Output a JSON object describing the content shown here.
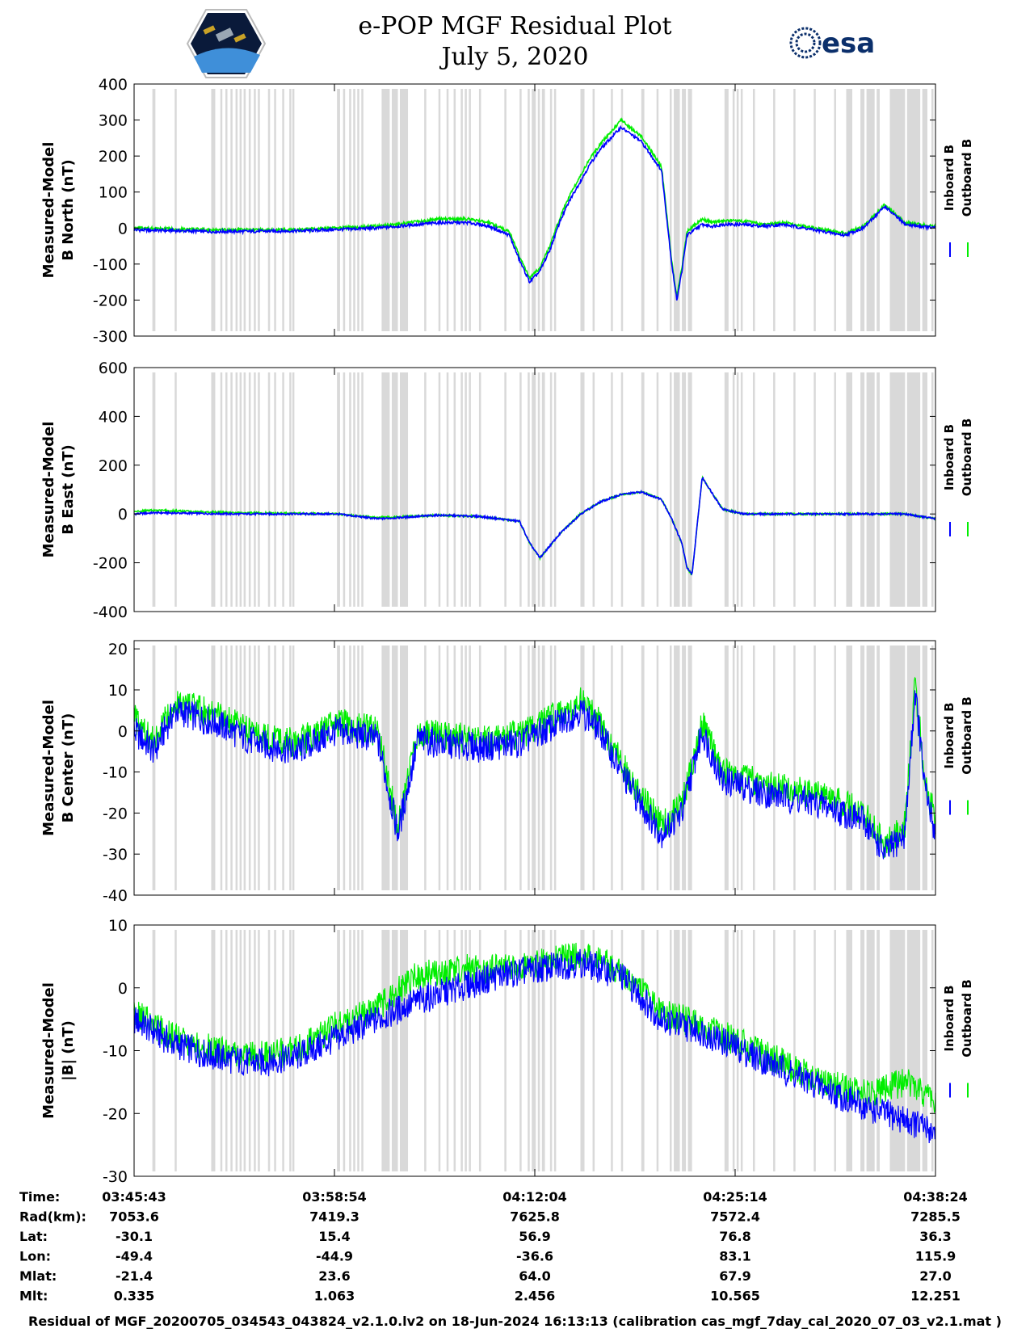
{
  "page": {
    "title_line1": "e-POP MGF Residual Plot",
    "title_line2": "July 5, 2020",
    "logo_left_icon": "cassiope-satellite-logo",
    "logo_right_text": "esa",
    "footer": "Residual of MGF_20200705_034543_043824_v2.1.0.lv2 on 18-Jun-2024 16:13:13 (calibration cas_mgf_7day_cal_2020_07_03_v2.1.mat )"
  },
  "colors": {
    "inboard": "#0000ff",
    "outboard": "#00ee00",
    "gap_shading": "#d9d9d9"
  },
  "chart_data": [
    {
      "type": "line",
      "ylabel": [
        "Measured-Model",
        "B North (nT)"
      ],
      "ylim": [
        -300,
        400
      ],
      "yticks": [
        -300,
        -200,
        -100,
        0,
        100,
        200,
        300,
        400
      ],
      "legend": [
        "Inboard B",
        "Outboard B"
      ],
      "legend_placement": "right",
      "x": [
        0,
        80,
        160,
        240,
        300,
        330,
        350,
        370,
        380,
        390,
        400,
        410,
        420,
        430,
        440,
        450,
        460,
        480,
        500,
        520,
        530,
        535,
        540,
        545,
        555,
        560,
        570,
        580,
        600,
        620,
        640,
        660,
        680,
        700,
        719,
        740,
        760,
        790
      ],
      "series": [
        {
          "name": "Inboard B",
          "values": [
            -5,
            -10,
            -8,
            0,
            15,
            15,
            5,
            -20,
            -90,
            -150,
            -120,
            -60,
            20,
            80,
            130,
            180,
            220,
            280,
            240,
            160,
            -100,
            -200,
            -120,
            -20,
            0,
            10,
            5,
            10,
            10,
            5,
            10,
            0,
            -10,
            -20,
            0,
            60,
            10,
            0
          ]
        },
        {
          "name": "Outboard B",
          "values": [
            0,
            -5,
            -5,
            5,
            25,
            25,
            15,
            -10,
            -80,
            -140,
            -110,
            -50,
            30,
            95,
            145,
            195,
            235,
            300,
            255,
            170,
            -90,
            -190,
            -110,
            -10,
            15,
            25,
            15,
            20,
            20,
            10,
            15,
            5,
            -5,
            -15,
            5,
            65,
            15,
            5
          ]
        }
      ]
    },
    {
      "type": "line",
      "ylabel": [
        "Measured-Model",
        "B East (nT)"
      ],
      "ylim": [
        -400,
        600
      ],
      "yticks": [
        -400,
        -200,
        0,
        200,
        400,
        600
      ],
      "legend": [
        "Inboard B",
        "Outboard B"
      ],
      "legend_placement": "right",
      "x": [
        0,
        20,
        100,
        200,
        240,
        300,
        340,
        380,
        390,
        400,
        420,
        440,
        460,
        480,
        500,
        520,
        530,
        540,
        545,
        550,
        560,
        580,
        600,
        650,
        700,
        760,
        790
      ],
      "series": [
        {
          "name": "Inboard B",
          "values": [
            0,
            5,
            0,
            0,
            -20,
            -5,
            -10,
            -30,
            -120,
            -180,
            -80,
            0,
            50,
            80,
            90,
            60,
            -20,
            -120,
            -220,
            -250,
            150,
            20,
            0,
            0,
            0,
            0,
            -20
          ]
        },
        {
          "name": "Outboard B",
          "values": [
            10,
            15,
            5,
            0,
            -15,
            -5,
            -10,
            -30,
            -120,
            -180,
            -80,
            0,
            50,
            80,
            90,
            60,
            -20,
            -120,
            -220,
            -250,
            150,
            20,
            0,
            0,
            0,
            0,
            -20
          ]
        }
      ]
    },
    {
      "type": "line",
      "ylabel": [
        "Measured-Model",
        "B Center (nT)"
      ],
      "ylim": [
        -40,
        22
      ],
      "yticks": [
        -40,
        -30,
        -20,
        -10,
        0,
        10,
        20
      ],
      "legend": [
        "Inboard B",
        "Outboard B"
      ],
      "legend_placement": "right",
      "x": [
        0,
        20,
        40,
        80,
        120,
        160,
        200,
        240,
        260,
        280,
        300,
        340,
        380,
        420,
        440,
        460,
        480,
        500,
        520,
        540,
        560,
        580,
        620,
        680,
        720,
        740,
        760,
        770,
        780,
        790
      ],
      "series": [
        {
          "name": "Inboard B",
          "values": [
            0,
            -5,
            5,
            2,
            -3,
            -5,
            0,
            -2,
            -25,
            -2,
            -3,
            -4,
            -3,
            2,
            5,
            0,
            -10,
            -18,
            -25,
            -20,
            0,
            -12,
            -15,
            -18,
            -22,
            -30,
            -25,
            10,
            -15,
            -25
          ]
        },
        {
          "name": "Outboard B",
          "values": [
            3,
            -3,
            7,
            4,
            -1,
            -3,
            2,
            0,
            -23,
            0,
            -1,
            -2,
            -1,
            4,
            7,
            2,
            -8,
            -16,
            -23,
            -18,
            2,
            -10,
            -13,
            -16,
            -20,
            -28,
            -23,
            12,
            -13,
            -22
          ]
        }
      ]
    },
    {
      "type": "line",
      "ylabel": [
        "Measured-Model",
        "|B| (nT)"
      ],
      "ylim": [
        -30,
        10
      ],
      "yticks": [
        -30,
        -20,
        -10,
        0,
        10
      ],
      "legend": [
        "Inboard B",
        "Outboard B"
      ],
      "legend_placement": "right",
      "x": [
        0,
        40,
        80,
        120,
        160,
        200,
        240,
        280,
        320,
        360,
        400,
        440,
        480,
        520,
        560,
        600,
        640,
        680,
        720,
        760,
        790
      ],
      "series": [
        {
          "name": "Inboard B",
          "values": [
            -5,
            -9,
            -11,
            -12,
            -11,
            -8,
            -5,
            -2,
            0,
            2,
            3,
            4,
            2,
            -5,
            -7,
            -10,
            -13,
            -16,
            -19,
            -21,
            -23
          ]
        },
        {
          "name": "Outboard B",
          "values": [
            -4,
            -8,
            -10,
            -11,
            -10,
            -6,
            -3,
            2,
            3,
            3,
            4,
            5,
            3,
            -4,
            -6,
            -9,
            -12,
            -15,
            -17,
            -15,
            -18
          ]
        }
      ]
    }
  ],
  "shaded_gaps": [
    [
      18,
      21
    ],
    [
      40,
      42
    ],
    [
      76,
      80
    ],
    [
      85,
      87
    ],
    [
      90,
      92
    ],
    [
      95,
      97
    ],
    [
      100,
      102
    ],
    [
      104,
      106
    ],
    [
      108,
      110
    ],
    [
      113,
      115
    ],
    [
      118,
      120
    ],
    [
      122,
      124
    ],
    [
      132,
      134
    ],
    [
      138,
      140
    ],
    [
      146,
      148
    ],
    [
      153,
      155
    ],
    [
      156,
      158
    ],
    [
      200,
      203
    ],
    [
      206,
      208
    ],
    [
      212,
      214
    ],
    [
      216,
      218
    ],
    [
      220,
      222
    ],
    [
      224,
      226
    ],
    [
      244,
      252
    ],
    [
      254,
      260
    ],
    [
      262,
      270
    ],
    [
      286,
      288
    ],
    [
      300,
      302
    ],
    [
      308,
      310
    ],
    [
      315,
      317
    ],
    [
      322,
      324
    ],
    [
      326,
      328
    ],
    [
      330,
      332
    ],
    [
      340,
      342
    ],
    [
      365,
      367
    ],
    [
      380,
      382
    ],
    [
      388,
      390
    ],
    [
      392,
      396
    ],
    [
      398,
      400
    ],
    [
      402,
      405
    ],
    [
      410,
      412
    ],
    [
      414,
      416
    ],
    [
      440,
      444
    ],
    [
      452,
      454
    ],
    [
      470,
      472
    ],
    [
      480,
      482
    ],
    [
      500,
      503
    ],
    [
      515,
      517
    ],
    [
      528,
      530
    ],
    [
      532,
      538
    ],
    [
      540,
      544
    ],
    [
      546,
      550
    ],
    [
      582,
      586
    ],
    [
      590,
      592
    ],
    [
      594,
      596
    ],
    [
      598,
      600
    ],
    [
      610,
      612
    ],
    [
      630,
      632
    ],
    [
      650,
      652
    ],
    [
      670,
      672
    ],
    [
      690,
      692
    ],
    [
      702,
      708
    ],
    [
      716,
      720
    ],
    [
      722,
      730
    ],
    [
      732,
      735
    ],
    [
      745,
      760
    ],
    [
      762,
      775
    ],
    [
      777,
      782
    ],
    [
      786,
      788
    ]
  ],
  "xaxis": {
    "xlim": [
      0,
      790
    ],
    "tick_positions": [
      0,
      197.5,
      395,
      592.5,
      790
    ],
    "rows": [
      {
        "label": "Time:",
        "values": [
          "03:45:43",
          "03:58:54",
          "04:12:04",
          "04:25:14",
          "04:38:24"
        ]
      },
      {
        "label": "Rad(km):",
        "values": [
          "7053.6",
          "7419.3",
          "7625.8",
          "7572.4",
          "7285.5"
        ]
      },
      {
        "label": "Lat:",
        "values": [
          "-30.1",
          "15.4",
          "56.9",
          "76.8",
          "36.3"
        ]
      },
      {
        "label": "Lon:",
        "values": [
          "-49.4",
          "-44.9",
          "-36.6",
          "83.1",
          "115.9"
        ]
      },
      {
        "label": "Mlat:",
        "values": [
          "-21.4",
          "23.6",
          "64.0",
          "67.9",
          "27.0"
        ]
      },
      {
        "label": "Mlt:",
        "values": [
          "0.335",
          "1.063",
          "2.456",
          "10.565",
          "12.251"
        ]
      }
    ]
  }
}
